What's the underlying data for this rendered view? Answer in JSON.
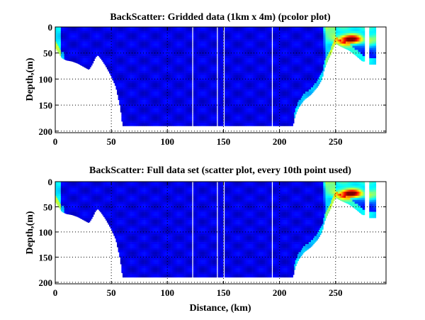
{
  "chart_data": [
    {
      "type": "heatmap",
      "title": "BackScatter: Gridded data (1km x 4m) (pcolor plot)",
      "xlabel": "",
      "ylabel": "Depth,(m)",
      "xlim": [
        0,
        295
      ],
      "ylim": [
        0,
        203
      ],
      "y_reversed": true,
      "xticks": [
        "0",
        "50",
        "100",
        "150",
        "200",
        "250"
      ],
      "yticks": [
        "0",
        "50",
        "100",
        "150",
        "200"
      ],
      "grid": "dotted",
      "colormap": "jet"
    },
    {
      "type": "scatter",
      "title": "BackScatter: Full data set (scatter plot, every 10th point used)",
      "xlabel": "Distance, (km)",
      "ylabel": "Depth,(m)",
      "xlim": [
        0,
        295
      ],
      "ylim": [
        0,
        203
      ],
      "y_reversed": true,
      "xticks": [
        "0",
        "50",
        "100",
        "150",
        "200",
        "250"
      ],
      "yticks": [
        "0",
        "50",
        "100",
        "150",
        "200"
      ],
      "grid": "dotted",
      "colormap": "jet"
    }
  ],
  "section": {
    "bottom_profile_km_m": [
      [
        0,
        40
      ],
      [
        3,
        50
      ],
      [
        6,
        60
      ],
      [
        10,
        64
      ],
      [
        15,
        66
      ],
      [
        20,
        70
      ],
      [
        25,
        76
      ],
      [
        30,
        82
      ],
      [
        33,
        72
      ],
      [
        36,
        58
      ],
      [
        38,
        54
      ],
      [
        41,
        62
      ],
      [
        45,
        75
      ],
      [
        50,
        95
      ],
      [
        54,
        115
      ],
      [
        56,
        135
      ],
      [
        58,
        155
      ],
      [
        60,
        190
      ],
      [
        212,
        190
      ],
      [
        214,
        170
      ],
      [
        217,
        155
      ],
      [
        222,
        140
      ],
      [
        228,
        130
      ],
      [
        234,
        115
      ],
      [
        238,
        100
      ],
      [
        240,
        80
      ],
      [
        243,
        65
      ],
      [
        246,
        52
      ],
      [
        248,
        40
      ],
      [
        250,
        32
      ],
      [
        255,
        38
      ],
      [
        262,
        45
      ],
      [
        268,
        55
      ],
      [
        274,
        66
      ],
      [
        276,
        66
      ]
    ],
    "second_segment_km": [
      280,
      286
    ],
    "second_segment_depth_m": 72,
    "data_gaps_km": [
      122,
      144,
      150,
      193
    ],
    "hotspot": {
      "center_km": 263,
      "center_depth_m": 22,
      "peak_value": 0.95
    },
    "background_value": 0.1
  }
}
